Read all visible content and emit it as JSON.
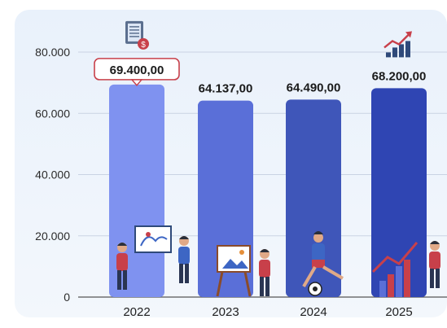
{
  "chart_data": {
    "type": "bar",
    "categories": [
      "2022",
      "2023",
      "2024",
      "2025"
    ],
    "values": [
      69400.0,
      64137.0,
      64490.0,
      68200.0
    ],
    "data_labels": [
      "69.400,00",
      "64.137,00",
      "64.490,00",
      "68.200,00"
    ],
    "y_ticks": [
      {
        "value": 0,
        "label": "0"
      },
      {
        "value": 20000,
        "label": "20.000"
      },
      {
        "value": 40000,
        "label": "40.000"
      },
      {
        "value": 60000,
        "label": "60.000"
      },
      {
        "value": 80000,
        "label": "80.000"
      }
    ],
    "ylim": [
      0,
      80000
    ],
    "grid": true,
    "bar_colors": [
      "#7f92f0",
      "#5a6fd8",
      "#3f56b9",
      "#2f45b3"
    ],
    "highlight_label_border": "#c8404a",
    "annotation_icons": [
      "document-coin-icon",
      "",
      "",
      "growth-chart-icon"
    ],
    "illustrations": [
      "teacher-students-icon",
      "painter-easel-icon",
      "soccer-player-icon",
      "analyst-chart-icon"
    ]
  }
}
